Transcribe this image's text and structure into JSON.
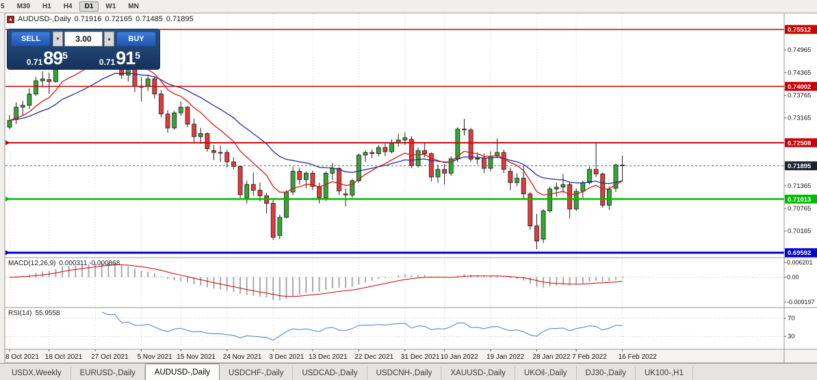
{
  "toolbar": {
    "items": [
      "5",
      "M30",
      "H1",
      "H4",
      "D1",
      "W1",
      "MN"
    ],
    "active": "D1"
  },
  "chart_title": {
    "symbol": "AUDUSD-,Daily",
    "open": "0.71916",
    "high": "0.72165",
    "low": "0.71485",
    "close": "0.71895"
  },
  "trade_widget": {
    "sell_label": "SELL",
    "buy_label": "BUY",
    "volume": "3.00",
    "spin_down": "▼",
    "spin_up": "▲",
    "sell_price_prefix": "0.71",
    "sell_price_big": "89",
    "sell_price_sup": "5",
    "buy_price_prefix": "0.71",
    "buy_price_big": "91",
    "buy_price_sup": "5"
  },
  "price_axis": {
    "plain_labels": [
      "0.74965",
      "0.74365",
      "0.73765",
      "0.73165",
      "0.71365",
      "0.70765",
      "0.70165"
    ],
    "lines": [
      {
        "value": 0.75512,
        "label": "0.75512",
        "color": "#cc0000",
        "width": 1.5,
        "marker": false
      },
      {
        "value": 0.74002,
        "label": "0.74002",
        "color": "#cc0000",
        "width": 1.5,
        "marker": false
      },
      {
        "value": 0.72508,
        "label": "0.72508",
        "color": "#cc0000",
        "width": 2,
        "marker": true
      },
      {
        "value": 0.71013,
        "label": "0.71013",
        "color": "#00bb00",
        "width": 2.5,
        "marker": true
      },
      {
        "value": 0.69592,
        "label": "0.69592",
        "color": "#0000cc",
        "width": 3,
        "marker": true
      }
    ],
    "current": {
      "value": 0.71895,
      "label": "0.71895",
      "badge_bg": "#1b2430"
    }
  },
  "panes": {
    "macd": {
      "title": "MACD(12,26,9)",
      "values": "0.000311 -0.000868",
      "fast": 12,
      "slow": 26,
      "signal_period": 9,
      "histogram_color": "#a8a8a8",
      "signal_color": "#cc0000",
      "axis_labels": [
        "0.006201",
        "0.00",
        "-0.009197"
      ]
    },
    "rsi": {
      "title": "RSI(14)",
      "value": "55.9558",
      "period": 14,
      "levels": [
        70,
        30
      ],
      "line_color": "#4a7ab5",
      "range": [
        5,
        90
      ]
    }
  },
  "colors": {
    "up": "#33a735",
    "down": "#e23a3a",
    "grid": "#c8c8c8"
  },
  "tabs": {
    "active_index": 2,
    "items": [
      "USDX,Weekly",
      "EURUSD-,Daily",
      "AUDUSD-,Daily",
      "USDCHF-,Daily",
      "USDCAD-,Daily",
      "USDCNH-,Daily",
      "XAUUSD-,Daily",
      "UKOil-,Daily",
      "DJ30-,Daily",
      "UK100-,H1"
    ]
  },
  "chart_data": {
    "type": "candlestick",
    "symbol": "AUDUSD-,Daily",
    "timeframe": "Daily",
    "price_range": [
      0.6946,
      0.7593
    ],
    "ma_fast": {
      "period": 10,
      "color": "#d41717"
    },
    "ma_slow": {
      "period": 24,
      "color": "#1f2b9e"
    },
    "x_tick_indices": [
      0,
      6,
      13,
      20,
      26,
      33,
      40,
      46,
      53,
      60,
      66,
      73,
      80,
      86,
      93
    ],
    "x_tick_labels": [
      "8 Oct 2021",
      "18 Oct 2021",
      "27 Oct 2021",
      "5 Nov 2021",
      "15 Nov 2021",
      "24 Nov 2021",
      "3 Dec 2021",
      "13 Dec 2021",
      "22 Dec 2021",
      "31 Dec 2021",
      "10 Jan 2022",
      "19 Jan 2022",
      "28 Jan 2022",
      "7 Feb 2022",
      "16 Feb 2022"
    ],
    "candles": [
      [
        0.7292,
        0.7324,
        0.7286,
        0.731
      ],
      [
        0.7312,
        0.7358,
        0.73,
        0.7345
      ],
      [
        0.7345,
        0.7362,
        0.7322,
        0.735
      ],
      [
        0.735,
        0.7395,
        0.734,
        0.738
      ],
      [
        0.738,
        0.7425,
        0.7375,
        0.7415
      ],
      [
        0.7415,
        0.744,
        0.7398,
        0.742
      ],
      [
        0.7418,
        0.7437,
        0.738,
        0.7413
      ],
      [
        0.7413,
        0.7485,
        0.741,
        0.7475
      ],
      [
        0.7475,
        0.7525,
        0.7462,
        0.7518
      ],
      [
        0.7518,
        0.7532,
        0.7452,
        0.7465
      ],
      [
        0.7465,
        0.749,
        0.745,
        0.7468
      ],
      [
        0.7468,
        0.75,
        0.7455,
        0.7488
      ],
      [
        0.7488,
        0.752,
        0.747,
        0.7503
      ],
      [
        0.7503,
        0.7536,
        0.749,
        0.7517
      ],
      [
        0.7517,
        0.7551,
        0.7505,
        0.7542
      ],
      [
        0.7542,
        0.7547,
        0.749,
        0.7518
      ],
      [
        0.7515,
        0.7535,
        0.7482,
        0.7525
      ],
      [
        0.7525,
        0.7528,
        0.742,
        0.743
      ],
      [
        0.743,
        0.747,
        0.7413,
        0.745
      ],
      [
        0.745,
        0.7455,
        0.7385,
        0.74
      ],
      [
        0.74,
        0.7425,
        0.736,
        0.74
      ],
      [
        0.74,
        0.7432,
        0.7388,
        0.742
      ],
      [
        0.742,
        0.7427,
        0.7368,
        0.738
      ],
      [
        0.738,
        0.739,
        0.7318,
        0.7327
      ],
      [
        0.7327,
        0.7337,
        0.7277,
        0.729
      ],
      [
        0.729,
        0.7335,
        0.7285,
        0.733
      ],
      [
        0.733,
        0.736,
        0.7322,
        0.7345
      ],
      [
        0.7345,
        0.7348,
        0.7293,
        0.73
      ],
      [
        0.73,
        0.7315,
        0.725,
        0.7267
      ],
      [
        0.7267,
        0.729,
        0.7248,
        0.7275
      ],
      [
        0.7275,
        0.7278,
        0.7227,
        0.7235
      ],
      [
        0.723,
        0.7245,
        0.7205,
        0.7225
      ],
      [
        0.7225,
        0.7243,
        0.72,
        0.7225
      ],
      [
        0.7225,
        0.7232,
        0.7185,
        0.72
      ],
      [
        0.72,
        0.7212,
        0.718,
        0.7188
      ],
      [
        0.7188,
        0.719,
        0.71,
        0.7113
      ],
      [
        0.7105,
        0.715,
        0.709,
        0.714
      ],
      [
        0.714,
        0.7172,
        0.711,
        0.7125
      ],
      [
        0.7125,
        0.7145,
        0.7095,
        0.711
      ],
      [
        0.711,
        0.7118,
        0.7063,
        0.709
      ],
      [
        0.709,
        0.7102,
        0.6993,
        0.7
      ],
      [
        0.7005,
        0.706,
        0.6995,
        0.7053
      ],
      [
        0.7053,
        0.7125,
        0.705,
        0.712
      ],
      [
        0.712,
        0.7187,
        0.7112,
        0.7175
      ],
      [
        0.7175,
        0.7185,
        0.714,
        0.7153
      ],
      [
        0.7153,
        0.7175,
        0.713,
        0.717
      ],
      [
        0.717,
        0.7177,
        0.7125,
        0.7135
      ],
      [
        0.7135,
        0.7145,
        0.709,
        0.7105
      ],
      [
        0.7105,
        0.7175,
        0.7096,
        0.717
      ],
      [
        0.717,
        0.7197,
        0.7152,
        0.7183
      ],
      [
        0.7183,
        0.7185,
        0.7112,
        0.7123
      ],
      [
        0.7115,
        0.713,
        0.7082,
        0.7112
      ],
      [
        0.7112,
        0.7155,
        0.7105,
        0.715
      ],
      [
        0.715,
        0.7222,
        0.7145,
        0.7218
      ],
      [
        0.7218,
        0.723,
        0.72,
        0.7225
      ],
      [
        0.7225,
        0.7233,
        0.721,
        0.7222
      ],
      [
        0.7222,
        0.7245,
        0.7215,
        0.7238
      ],
      [
        0.7238,
        0.7248,
        0.7215,
        0.7227
      ],
      [
        0.7227,
        0.726,
        0.7222,
        0.725
      ],
      [
        0.725,
        0.7275,
        0.724,
        0.7258
      ],
      [
        0.7258,
        0.7278,
        0.7245,
        0.7264
      ],
      [
        0.726,
        0.7268,
        0.7183,
        0.719
      ],
      [
        0.719,
        0.7238,
        0.7185,
        0.723
      ],
      [
        0.723,
        0.725,
        0.7212,
        0.7222
      ],
      [
        0.7222,
        0.7225,
        0.7148,
        0.716
      ],
      [
        0.716,
        0.7193,
        0.7145,
        0.718
      ],
      [
        0.718,
        0.7194,
        0.714,
        0.717
      ],
      [
        0.717,
        0.7215,
        0.7163,
        0.7208
      ],
      [
        0.7208,
        0.7292,
        0.72,
        0.7287
      ],
      [
        0.7287,
        0.7314,
        0.727,
        0.7285
      ],
      [
        0.7285,
        0.729,
        0.72,
        0.7207
      ],
      [
        0.7207,
        0.7225,
        0.7193,
        0.721
      ],
      [
        0.721,
        0.7222,
        0.717,
        0.7183
      ],
      [
        0.7183,
        0.7228,
        0.7175,
        0.7215
      ],
      [
        0.7215,
        0.7262,
        0.721,
        0.7225
      ],
      [
        0.7225,
        0.7232,
        0.717,
        0.718
      ],
      [
        0.7175,
        0.7185,
        0.7125,
        0.7145
      ],
      [
        0.7145,
        0.717,
        0.7135,
        0.7157
      ],
      [
        0.7157,
        0.719,
        0.71,
        0.7115
      ],
      [
        0.7115,
        0.712,
        0.702,
        0.703
      ],
      [
        0.703,
        0.7062,
        0.6968,
        0.699
      ],
      [
        0.6995,
        0.7075,
        0.6985,
        0.707
      ],
      [
        0.707,
        0.7135,
        0.7065,
        0.7128
      ],
      [
        0.7128,
        0.7145,
        0.7108,
        0.7133
      ],
      [
        0.7133,
        0.7168,
        0.7118,
        0.714
      ],
      [
        0.714,
        0.7147,
        0.705,
        0.7075
      ],
      [
        0.7075,
        0.713,
        0.707,
        0.7122
      ],
      [
        0.7122,
        0.715,
        0.71,
        0.7145
      ],
      [
        0.7145,
        0.7187,
        0.714,
        0.718
      ],
      [
        0.718,
        0.7249,
        0.716,
        0.7168
      ],
      [
        0.7168,
        0.7172,
        0.7078,
        0.7085
      ],
      [
        0.7085,
        0.7135,
        0.7073,
        0.7127
      ],
      [
        0.713,
        0.7195,
        0.712,
        0.7192
      ],
      [
        0.71916,
        0.72165,
        0.71485,
        0.71895
      ]
    ]
  }
}
